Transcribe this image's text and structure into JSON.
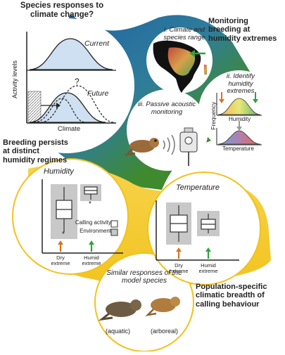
{
  "title_question": "Species responses to climate change?",
  "monitoring_title": "Monitoring breeding at humidity extremes",
  "breeding_title": "Breeding persists at distinct humidity regimes",
  "population_title": "Population-specific climatic breadth of calling behaviour",
  "response_panel": {
    "ylabel": "Activity levels",
    "xlabel": "Climate",
    "current_label": "Current",
    "future_label": "Future",
    "question_mark": "?"
  },
  "steps": {
    "step1": "i. Climate and species range",
    "step2": "ii. Identify humidity extremes",
    "step3": "iii. Passive acoustic monitoring",
    "frequency_label": "Frequency",
    "humidity_label": "Humidity",
    "temperature_label": "Temperature"
  },
  "humidity_panel": {
    "title": "Humidity",
    "legend_calling": "Calling activity",
    "legend_environment": "Environment",
    "x_dry": "Dry extreme",
    "x_humid": "Humid extreme",
    "star": "*"
  },
  "temperature_panel": {
    "title": "Temperature",
    "x_dry": "Dry extreme",
    "x_humid": "Humid extreme"
  },
  "model_species": {
    "title": "Similar responses of the model species",
    "aquatic": "(aquatic)",
    "arboreal": "(arboreal)"
  },
  "colors": {
    "yellow": "#f2c21b",
    "green": "#3f8a2e",
    "blue": "#1b6aa6",
    "dry_arrow": "#d8731f",
    "humid_arrow": "#2fa33a",
    "box_grey": "#c8c8c8"
  }
}
